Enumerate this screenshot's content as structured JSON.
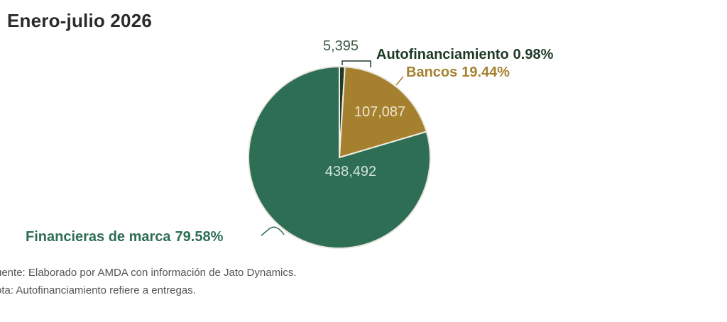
{
  "title": "Enero-julio 2026",
  "chart_data": {
    "type": "pie",
    "title": "Enero-julio 2026",
    "slices": [
      {
        "label": "Autofinanciamiento",
        "percent_text": "0.98%",
        "value": 5395,
        "value_text": "5,395",
        "color": "#1e3a26"
      },
      {
        "label": "Bancos",
        "percent_text": "19.44%",
        "value": 107087,
        "value_text": "107,087",
        "color": "#a5812f"
      },
      {
        "label": "Financieras de marca",
        "percent_text": "79.58%",
        "value": 438492,
        "value_text": "438,492",
        "color": "#2e6e55"
      }
    ]
  },
  "notes": {
    "source": "uente: Elaborado por AMDA con información de Jato Dynamics.",
    "note": "ota: Autofinanciamiento refiere a entregas."
  }
}
